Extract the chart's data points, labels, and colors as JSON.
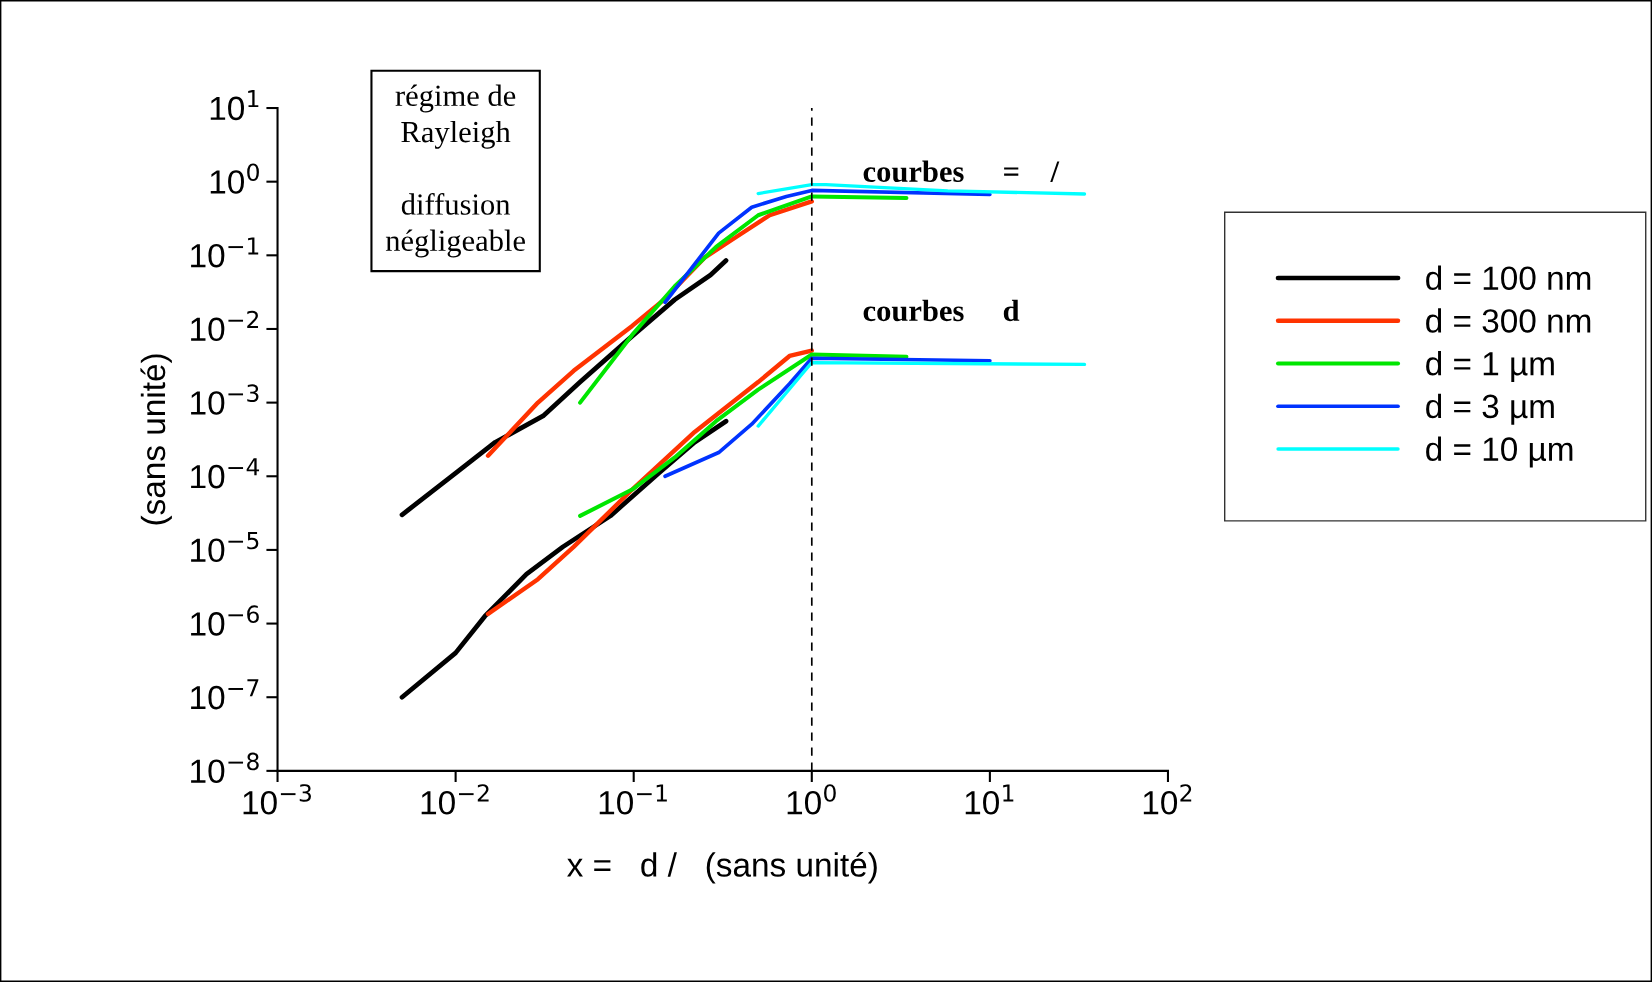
{
  "chart_data": {
    "type": "line",
    "xlabel": "x =   d /   (sans unité)",
    "ylabel": "(sans unité)",
    "annotations": [
      "régime de\nRayleigh\n\ndiffusion\nnégligeable",
      "courbes     =    /",
      "courbes     d"
    ],
    "series": [
      {
        "name": "d = 100 nm",
        "color": "#000000",
        "x": [
          0.005,
          0.01,
          0.0167,
          0.031,
          0.05,
          0.098,
          0.17,
          0.27,
          0.33
        ],
        "values": [
          3e-05,
          0.00011,
          0.00029,
          0.00066,
          0.0019,
          0.008,
          0.025,
          0.054,
          0.085
        ]
      },
      {
        "name": "d = 300 nm",
        "color": "#ff3300",
        "x": [
          0.0152,
          0.029,
          0.046,
          0.098,
          0.148,
          0.25,
          0.38,
          0.58,
          1
        ],
        "values": [
          0.00019,
          0.001,
          0.0027,
          0.011,
          0.025,
          0.093,
          0.18,
          0.35,
          0.54
        ]
      },
      {
        "name": "d = 1 µm",
        "color": "#00e600",
        "x": [
          0.05,
          0.098,
          0.17,
          0.29,
          0.5,
          1,
          3.4
        ],
        "values": [
          0.001,
          0.0083,
          0.038,
          0.13,
          0.35,
          0.63,
          0.6
        ]
      },
      {
        "name": "d = 3 µm",
        "color": "#0033ff",
        "x": [
          0.15,
          0.3,
          0.46,
          0.72,
          1,
          10
        ],
        "values": [
          0.023,
          0.2,
          0.45,
          0.63,
          0.76,
          0.67
        ]
      },
      {
        "name": "d = 10 µm",
        "color": "#00ffff",
        "x": [
          0.5,
          1,
          1.2,
          5.8,
          34
        ],
        "values": [
          0.69,
          0.91,
          0.91,
          0.75,
          0.68
        ]
      },
      {
        "color": "#000000",
        "x": [
          0.005,
          0.01,
          0.0146,
          0.025,
          0.04,
          0.074,
          0.138,
          0.22,
          0.33
        ],
        "values": [
          1e-07,
          4e-07,
          1.26e-06,
          4.7e-06,
          1.1e-05,
          2.9e-05,
          0.00011,
          0.00029,
          0.00056
        ]
      },
      {
        "color": "#ff3300",
        "x": [
          0.0152,
          0.029,
          0.046,
          0.098,
          0.22,
          0.5,
          0.75,
          1
        ],
        "values": [
          1.35e-06,
          4e-06,
          1.1e-05,
          6.6e-05,
          0.0004,
          0.0019,
          0.0043,
          0.0051
        ]
      },
      {
        "color": "#00e600",
        "x": [
          0.05,
          0.098,
          0.17,
          0.29,
          0.5,
          1,
          3.4
        ],
        "values": [
          2.9e-05,
          6.6e-05,
          0.00018,
          0.00056,
          0.0015,
          0.0045,
          0.0042
        ]
      },
      {
        "color": "#0033ff",
        "x": [
          0.15,
          0.3,
          0.46,
          0.75,
          1,
          10
        ],
        "values": [
          0.0001,
          0.00021,
          0.00051,
          0.0018,
          0.004,
          0.0037
        ]
      },
      {
        "color": "#00ffff",
        "x": [
          0.5,
          1,
          34
        ],
        "values": [
          0.00048,
          0.0035,
          0.0033
        ]
      }
    ],
    "log": "xy",
    "xlim": [
      0.001,
      100
    ],
    "ylim": [
      1e-08,
      10
    ],
    "xticks": [
      {
        "value": 0.001,
        "label": "10$^{−3}$"
      },
      {
        "value": 0.01,
        "label": "10$^{−2}$"
      },
      {
        "value": 0.1,
        "label": "10$^{−1}$"
      },
      {
        "value": 1,
        "label": "10$^{0}$"
      },
      {
        "value": 10,
        "label": "10$^{1}$"
      },
      {
        "value": 100,
        "label": "10$^{2}$"
      }
    ],
    "yticks": [
      {
        "value": 1e-08,
        "label": "10$^{−8}$"
      },
      {
        "value": 1e-07,
        "label": "10$^{−7}$"
      },
      {
        "value": 1e-06,
        "label": "10$^{−6}$"
      },
      {
        "value": 1e-05,
        "label": "10$^{−5}$"
      },
      {
        "value": 0.0001,
        "label": "10$^{−4}$"
      },
      {
        "value": 0.001,
        "label": "10$^{−3}$"
      },
      {
        "value": 0.01,
        "label": "10$^{−2}$"
      },
      {
        "value": 0.1,
        "label": "10$^{−1}$"
      },
      {
        "value": 1,
        "label": "10$^{0}$"
      },
      {
        "value": 10,
        "label": "10$^{1}$"
      }
    ],
    "ref_lines": [
      {
        "axis": "x",
        "value": 1,
        "color": "#000000",
        "line_style": "dashed"
      }
    ],
    "grid": false,
    "legend": "right",
    "marker": "none",
    "line_style": "solid"
  }
}
